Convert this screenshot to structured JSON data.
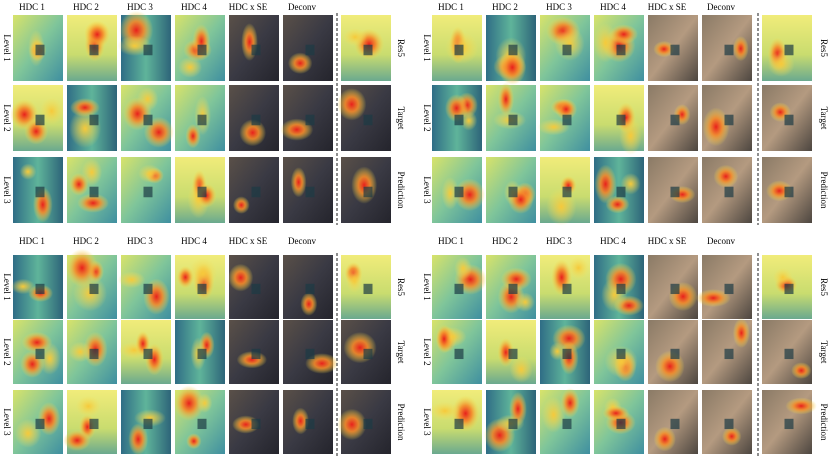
{
  "panels": [
    {
      "columns": [
        "HDC 1",
        "HDC 2",
        "HDC 3",
        "HDC 4",
        "HDC x SE",
        "Deconv"
      ],
      "rows": [
        "Level 1",
        "Level 2",
        "Level 3"
      ],
      "right_labels": [
        "Res5",
        "Target",
        "Prediction"
      ]
    },
    {
      "columns": [
        "HDC 1",
        "HDC 2",
        "HDC 3",
        "HDC 4",
        "HDC x SE",
        "Deconv"
      ],
      "rows": [
        "Level 1",
        "Level 2",
        "Level 3"
      ],
      "right_labels": [
        "Res5",
        "Target",
        "Prediction"
      ]
    },
    {
      "columns": [
        "HDC 1",
        "HDC 2",
        "HDC 3",
        "HDC 4",
        "HDC x SE",
        "Deconv"
      ],
      "rows": [
        "Level 1",
        "Level 2",
        "Level 3"
      ],
      "right_labels": [
        "Res5",
        "Target",
        "Prediction"
      ]
    },
    {
      "columns": [
        "HDC 1",
        "HDC 2",
        "HDC 3",
        "HDC 4",
        "HDC x SE",
        "Deconv"
      ],
      "rows": [
        "Level 1",
        "Level 2",
        "Level 3"
      ],
      "right_labels": [
        "Res5",
        "Target",
        "Prediction"
      ]
    }
  ]
}
